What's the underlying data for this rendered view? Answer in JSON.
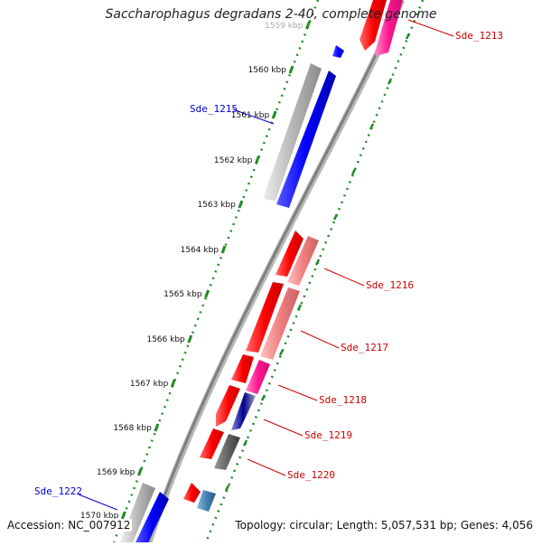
{
  "title": "Saccharophagus degradans 2-40, complete genome",
  "accession": "Accession: NC_007912",
  "topology": "Topology: circular; Length: 5,057,531 bp; Genes: 4,056",
  "colors": {
    "forward_track": "#ff0000",
    "reverse_track": "#0000ff",
    "pink": "#ff1493",
    "salmon": "#f08080",
    "grey": "#9a9a9a",
    "dark_grey": "#555555",
    "steel_blue": "#4682b4",
    "navy": "#00008b",
    "scale_dots": "#228b22",
    "backbone": "#888888"
  },
  "ticks": [
    {
      "label": "1559 kbp"
    },
    {
      "label": "1560 kbp"
    },
    {
      "label": "1561 kbp"
    },
    {
      "label": "1562 kbp"
    },
    {
      "label": "1563 kbp"
    },
    {
      "label": "1564 kbp"
    },
    {
      "label": "1565 kbp"
    },
    {
      "label": "1566 kbp"
    },
    {
      "label": "1567 kbp"
    },
    {
      "label": "1568 kbp"
    },
    {
      "label": "1569 kbp"
    },
    {
      "label": "1570 kbp"
    }
  ],
  "gene_labels": [
    {
      "id": "Sde_1213",
      "color": "#cc0000"
    },
    {
      "id": "Sde_1215",
      "color": "#0000cc"
    },
    {
      "id": "Sde_1216",
      "color": "#cc0000"
    },
    {
      "id": "Sde_1217",
      "color": "#cc0000"
    },
    {
      "id": "Sde_1218",
      "color": "#cc0000"
    },
    {
      "id": "Sde_1219",
      "color": "#cc0000"
    },
    {
      "id": "Sde_1220",
      "color": "#cc0000"
    },
    {
      "id": "Sde_1222",
      "color": "#0000cc"
    }
  ]
}
